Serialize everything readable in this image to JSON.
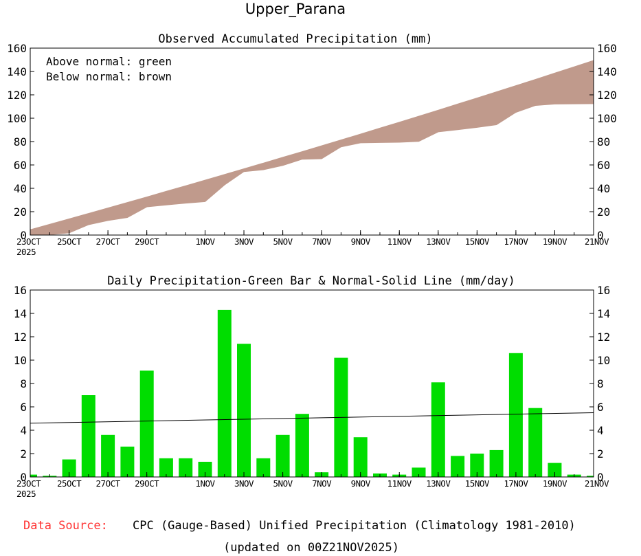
{
  "title": "Upper_Parana",
  "footer": {
    "source_label": "Data Source:",
    "source_text": "CPC (Gauge-Based) Unified Precipitation (Climatology 1981-2010)",
    "updated": "(updated on 00Z21NOV2025)"
  },
  "colors": {
    "below_fill": "#c09a8c",
    "bar_fill": "#00dd00",
    "source_label": "#ff3333",
    "axis": "#000000"
  },
  "chart_data": [
    {
      "type": "area",
      "title": "Observed Accumulated Precipitation (mm)",
      "legend": [
        "Above normal: green",
        "Below normal: brown"
      ],
      "ylim": [
        0,
        160
      ],
      "yticks": [
        0,
        20,
        40,
        60,
        80,
        100,
        120,
        140,
        160
      ],
      "xticks": [
        {
          "day": 0,
          "label": "23OCT",
          "label2": "2025"
        },
        {
          "day": 2,
          "label": "25OCT"
        },
        {
          "day": 4,
          "label": "27OCT"
        },
        {
          "day": 6,
          "label": "29OCT"
        },
        {
          "day": 9,
          "label": "1NOV"
        },
        {
          "day": 11,
          "label": "3NOV"
        },
        {
          "day": 13,
          "label": "5NOV"
        },
        {
          "day": 15,
          "label": "7NOV"
        },
        {
          "day": 17,
          "label": "9NOV"
        },
        {
          "day": 19,
          "label": "11NOV"
        },
        {
          "day": 21,
          "label": "13NOV"
        },
        {
          "day": 23,
          "label": "15NOV"
        },
        {
          "day": 25,
          "label": "17NOV"
        },
        {
          "day": 27,
          "label": "19NOV"
        },
        {
          "day": 29,
          "label": "21NOV"
        }
      ],
      "normal": [
        4.6,
        9.2,
        13.8,
        18.5,
        23.2,
        27.9,
        32.6,
        37.4,
        42.2,
        47.0,
        51.8,
        56.7,
        61.6,
        66.5,
        71.4,
        76.4,
        81.4,
        86.4,
        91.5,
        96.6,
        101.7,
        106.9,
        112.1,
        117.3,
        122.6,
        127.9,
        133.2,
        138.6,
        144.0,
        149.4
      ],
      "observed": [
        0.2,
        0.3,
        1.8,
        8.8,
        12.4,
        15.0,
        24.1,
        25.7,
        27.3,
        28.6,
        42.9,
        54.3,
        55.9,
        59.5,
        64.9,
        65.3,
        75.5,
        78.9,
        79.2,
        79.4,
        80.2,
        88.3,
        90.1,
        92.1,
        94.4,
        105.0,
        110.9,
        112.1,
        112.3,
        112.4
      ]
    },
    {
      "type": "bar",
      "title": "Daily Precipitation-Green Bar & Normal-Solid Line (mm/day)",
      "ylim": [
        0,
        16
      ],
      "yticks": [
        0,
        2,
        4,
        6,
        8,
        10,
        12,
        14,
        16
      ],
      "bars": [
        0.2,
        0.1,
        1.5,
        7.0,
        3.6,
        2.6,
        9.1,
        1.6,
        1.6,
        1.3,
        14.3,
        11.4,
        1.6,
        3.6,
        5.4,
        0.4,
        10.2,
        3.4,
        0.3,
        0.2,
        0.8,
        8.1,
        1.8,
        2.0,
        2.3,
        10.6,
        5.9,
        1.2,
        0.2,
        0.1
      ],
      "normal_line": [
        4.6,
        5.5
      ]
    }
  ]
}
